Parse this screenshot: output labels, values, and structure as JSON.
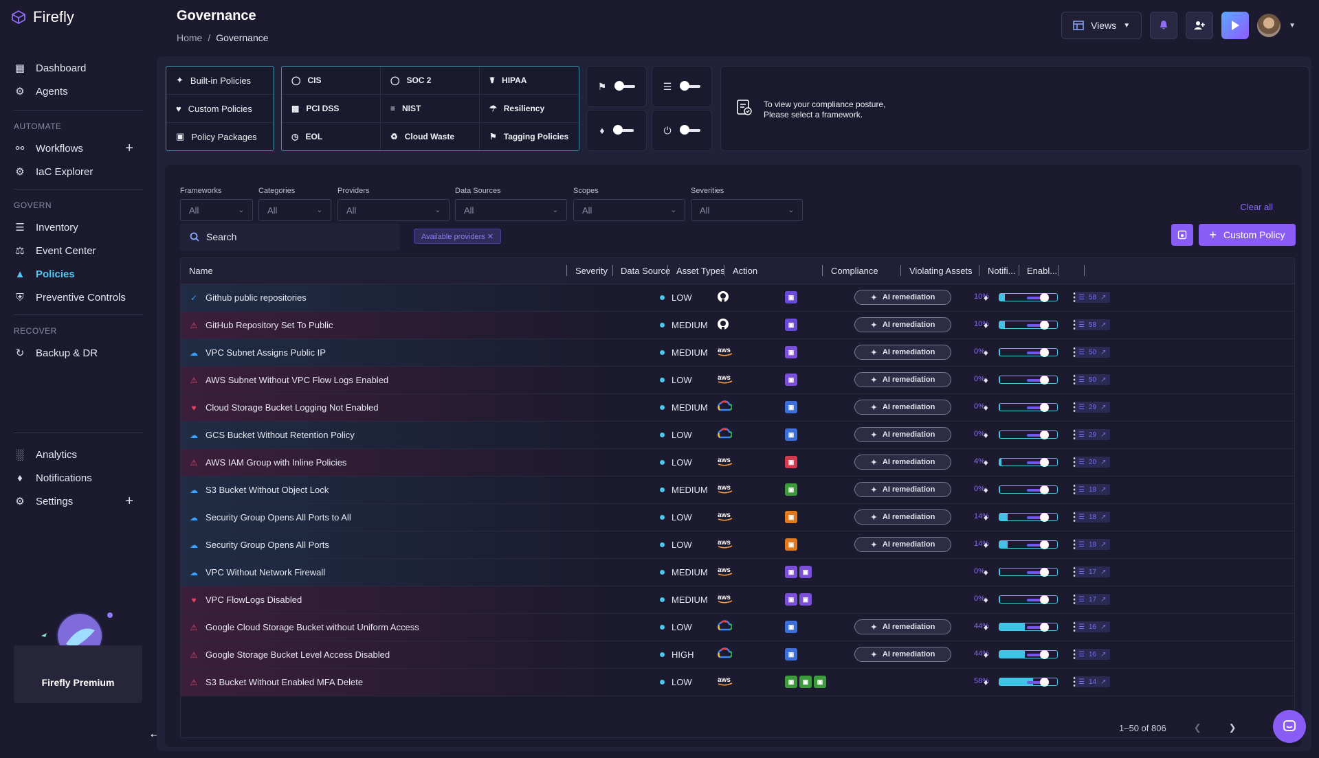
{
  "app": {
    "name": "Firefly"
  },
  "sidebar": {
    "top_items": [
      {
        "label": "Dashboard",
        "icon": "dashboard-icon"
      },
      {
        "label": "Agents",
        "icon": "agents-icon"
      }
    ],
    "sections": [
      {
        "label": "AUTOMATE",
        "items": [
          {
            "label": "Workflows",
            "icon": "workflow-icon",
            "plus": "+"
          },
          {
            "label": "IaC Explorer",
            "icon": "gear-icon"
          }
        ]
      },
      {
        "label": "GOVERN",
        "items": [
          {
            "label": "Inventory",
            "icon": "layers-icon"
          },
          {
            "label": "Event Center",
            "icon": "event-icon"
          },
          {
            "label": "Policies",
            "icon": "policies-icon",
            "active": true
          },
          {
            "label": "Preventive Controls",
            "icon": "shield-icon"
          }
        ]
      },
      {
        "label": "RECOVER",
        "items": [
          {
            "label": "Backup & DR",
            "icon": "backup-icon"
          }
        ]
      }
    ],
    "bottom_items": [
      {
        "label": "Analytics",
        "icon": "analytics-icon"
      },
      {
        "label": "Notifications",
        "icon": "bell-icon"
      },
      {
        "label": "Settings",
        "icon": "gear-icon",
        "plus": "+"
      }
    ],
    "premium_label": "Firefly Premium"
  },
  "header": {
    "title": "Governance",
    "breadcrumb": [
      "Home",
      "/",
      "Governance"
    ],
    "views_label": "Views"
  },
  "frameworks": {
    "policy_types": [
      "Built-in Policies",
      "Custom Policies",
      "Policy Packages"
    ],
    "standards": [
      [
        "CIS",
        "SOC 2",
        "HIPAA"
      ],
      [
        "PCI DSS",
        "NIST",
        "Resiliency"
      ],
      [
        "EOL",
        "Cloud Waste",
        "Tagging Policies"
      ]
    ],
    "info_text_1": "To view your compliance posture,",
    "info_text_2": "Please select a framework."
  },
  "filters": {
    "items": [
      {
        "label": "Frameworks",
        "value": "All"
      },
      {
        "label": "Categories",
        "value": "All"
      },
      {
        "label": "Providers",
        "value": "All"
      },
      {
        "label": "Data Sources",
        "value": "All"
      },
      {
        "label": "Scopes",
        "value": "All"
      },
      {
        "label": "Severities",
        "value": "All"
      }
    ],
    "clear_all": "Clear all",
    "search_placeholder": "Search",
    "chip": "Available providers ✕",
    "custom_policy": "Custom Policy"
  },
  "table": {
    "columns": [
      "Name",
      "Severity",
      "Data Source",
      "Asset Types",
      "Action",
      "Compliance",
      "Violating Assets",
      "Notifi...",
      "Enabl..."
    ],
    "ai_label": "AI remediation",
    "rows": [
      {
        "name": "Github public repositories",
        "severity": "LOW",
        "source": "github",
        "compliance": "10%",
        "fill": 0.1,
        "violations": "58",
        "ai": true,
        "assets": [
          "#6a4bd8"
        ]
      },
      {
        "name": "GitHub Repository Set To Public",
        "severity": "MEDIUM",
        "source": "github",
        "compliance": "10%",
        "fill": 0.1,
        "violations": "58",
        "ai": true,
        "assets": [
          "#6a4bd8"
        ]
      },
      {
        "name": "VPC Subnet Assigns Public IP",
        "severity": "MEDIUM",
        "source": "aws",
        "compliance": "0%",
        "fill": 0,
        "violations": "50",
        "ai": true,
        "assets": [
          "#7b4fd8"
        ]
      },
      {
        "name": "AWS Subnet Without VPC Flow Logs Enabled",
        "severity": "LOW",
        "source": "aws",
        "compliance": "0%",
        "fill": 0,
        "violations": "50",
        "ai": true,
        "assets": [
          "#7b4fd8"
        ]
      },
      {
        "name": "Cloud Storage Bucket Logging Not Enabled",
        "severity": "MEDIUM",
        "source": "gcp",
        "compliance": "0%",
        "fill": 0,
        "violations": "29",
        "ai": true,
        "assets": [
          "#3c6fd8"
        ]
      },
      {
        "name": "GCS Bucket Without Retention Policy",
        "severity": "LOW",
        "source": "gcp",
        "compliance": "0%",
        "fill": 0,
        "violations": "29",
        "ai": true,
        "assets": [
          "#3c6fd8"
        ]
      },
      {
        "name": "AWS IAM Group with Inline Policies",
        "severity": "LOW",
        "source": "aws",
        "compliance": "4%",
        "fill": 0.04,
        "violations": "20",
        "ai": true,
        "assets": [
          "#d23b4e"
        ]
      },
      {
        "name": "S3 Bucket Without Object Lock",
        "severity": "MEDIUM",
        "source": "aws",
        "compliance": "0%",
        "fill": 0,
        "violations": "18",
        "ai": true,
        "assets": [
          "#3d9a3d"
        ]
      },
      {
        "name": "Security Group Opens All Ports to All",
        "severity": "LOW",
        "source": "aws",
        "compliance": "14%",
        "fill": 0.14,
        "violations": "18",
        "ai": true,
        "assets": [
          "#e07a1f"
        ]
      },
      {
        "name": "Security Group Opens All Ports",
        "severity": "LOW",
        "source": "aws",
        "compliance": "14%",
        "fill": 0.14,
        "violations": "18",
        "ai": true,
        "assets": [
          "#e07a1f"
        ]
      },
      {
        "name": "VPC Without Network Firewall",
        "severity": "MEDIUM",
        "source": "aws",
        "compliance": "0%",
        "fill": 0,
        "violations": "17",
        "ai": false,
        "assets": [
          "#7b4fd8",
          "#7b4fd8"
        ]
      },
      {
        "name": "VPC FlowLogs Disabled",
        "severity": "MEDIUM",
        "source": "aws",
        "compliance": "0%",
        "fill": 0,
        "violations": "17",
        "ai": false,
        "assets": [
          "#7b4fd8",
          "#7b4fd8"
        ]
      },
      {
        "name": "Google Cloud Storage Bucket without Uniform Access",
        "severity": "LOW",
        "source": "gcp",
        "compliance": "44%",
        "fill": 0.44,
        "violations": "16",
        "ai": true,
        "assets": [
          "#3c6fd8"
        ]
      },
      {
        "name": "Google Storage Bucket Level Access Disabled",
        "severity": "HIGH",
        "source": "gcp",
        "compliance": "44%",
        "fill": 0.44,
        "violations": "16",
        "ai": true,
        "assets": [
          "#3c6fd8"
        ]
      },
      {
        "name": "S3 Bucket Without Enabled MFA Delete",
        "severity": "LOW",
        "source": "aws",
        "compliance": "58%",
        "fill": 0.58,
        "violations": "14",
        "ai": false,
        "assets": [
          "#3d9a3d",
          "#3d9a3d",
          "#3d9a3d"
        ]
      }
    ],
    "pager": "1–50 of 806"
  },
  "colors": {
    "accent": "#8a5cf6",
    "active_nav": "#52c7f2",
    "compliance_fill": "#3cc6e6"
  }
}
